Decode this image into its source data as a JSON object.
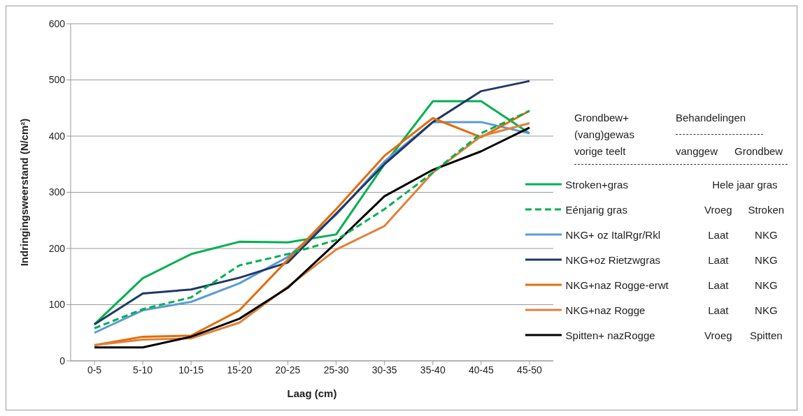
{
  "chart_data": {
    "type": "line",
    "xlabel": "Laag (cm)",
    "ylabel": "Indringingsweerstand (N/cm²)",
    "categories": [
      "0-5",
      "5-10",
      "10-15",
      "15-20",
      "20-25",
      "25-30",
      "30-35",
      "35-40",
      "40-45",
      "45-50"
    ],
    "ylim": [
      0,
      600
    ],
    "yticks": [
      0,
      100,
      200,
      300,
      400,
      500,
      600
    ],
    "grid": "y",
    "legend": "right",
    "marker": "none",
    "series": [
      {
        "name": "Stroken+gras",
        "color": "#00b050",
        "values": [
          65,
          147,
          190,
          212,
          211,
          225,
          350,
          462,
          462,
          405
        ]
      },
      {
        "name": "Eénjarig gras",
        "color": "#00b050",
        "line_style": "dashed",
        "values": [
          58,
          92,
          113,
          170,
          190,
          215,
          270,
          335,
          405,
          445
        ]
      },
      {
        "name": "NKG+ oz ItalRgr/Rkl",
        "color": "#5b9bd5",
        "values": [
          50,
          90,
          105,
          138,
          185,
          260,
          355,
          425,
          425,
          405
        ]
      },
      {
        "name": "NKG+oz Rietzwgras",
        "color": "#1f3864",
        "values": [
          65,
          120,
          127,
          148,
          175,
          262,
          350,
          425,
          480,
          498
        ]
      },
      {
        "name": "NKG+naz Rogge-erwt",
        "color": "#e46c0a",
        "values": [
          28,
          43,
          45,
          90,
          180,
          270,
          365,
          432,
          398,
          445
        ]
      },
      {
        "name": "NKG+naz Rogge",
        "color": "#e0813a",
        "values": [
          28,
          38,
          40,
          68,
          132,
          198,
          240,
          335,
          400,
          423
        ]
      },
      {
        "name": "Spitten+ nazRogge",
        "color": "#000000",
        "values": [
          24,
          24,
          43,
          75,
          130,
          210,
          293,
          340,
          373,
          415
        ]
      }
    ],
    "annotations": [
      "Grondbew+",
      "(vang)gewas",
      "vorige teelt",
      "Behandelingen",
      "vanggew",
      "Grondbew",
      "Hele jaar gras",
      "Vroeg",
      "Stroken",
      "Laat",
      "NKG",
      "Laat",
      "NKG",
      "Laat",
      "NKG",
      "Laat",
      "NKG",
      "Vroeg",
      "Spitten"
    ]
  }
}
